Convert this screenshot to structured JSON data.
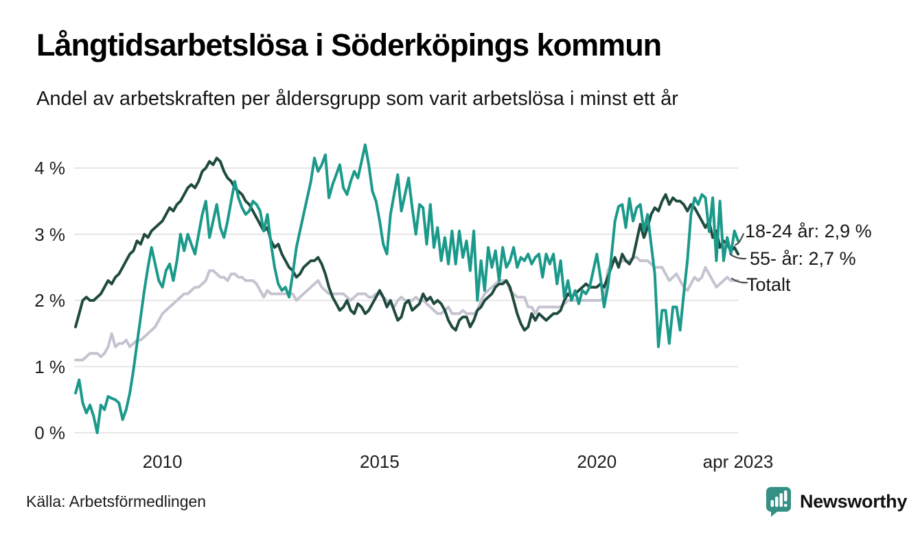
{
  "header": {
    "title": "Långtidsarbetslösa i Söderköpings kommun",
    "subtitle": "Andel av arbetskraften per åldersgrupp som varit arbetslösa i minst ett år"
  },
  "chart_data": {
    "type": "line",
    "x_unit": "month",
    "x_start": "2008-01",
    "x_end": "2023-04",
    "ylim": [
      0,
      4.5
    ],
    "grid": "horizontal",
    "legend_position": "right-end-labels",
    "yticks": [
      {
        "value": 0,
        "label": "0 %"
      },
      {
        "value": 1,
        "label": "1 %"
      },
      {
        "value": 2,
        "label": "2 %"
      },
      {
        "value": 3,
        "label": "3 %"
      },
      {
        "value": 4,
        "label": "4 %"
      }
    ],
    "xticks": [
      {
        "month_index": 24,
        "label": "2010"
      },
      {
        "month_index": 84,
        "label": "2015"
      },
      {
        "month_index": 144,
        "label": "2020"
      },
      {
        "month_index": 183,
        "label": "apr 2023"
      }
    ],
    "series": [
      {
        "name": "Totalt",
        "color": "#c5c3d0",
        "end_label": "Totalt",
        "end_value": 2.3,
        "values": [
          1.1,
          1.1,
          1.1,
          1.15,
          1.2,
          1.2,
          1.2,
          1.15,
          1.2,
          1.3,
          1.5,
          1.3,
          1.35,
          1.35,
          1.4,
          1.3,
          1.35,
          1.4,
          1.4,
          1.45,
          1.5,
          1.55,
          1.6,
          1.7,
          1.8,
          1.85,
          1.9,
          1.95,
          2.0,
          2.05,
          2.1,
          2.1,
          2.15,
          2.2,
          2.2,
          2.25,
          2.3,
          2.45,
          2.45,
          2.4,
          2.35,
          2.35,
          2.3,
          2.4,
          2.4,
          2.35,
          2.35,
          2.3,
          2.3,
          2.3,
          2.25,
          2.15,
          2.05,
          2.15,
          2.1,
          2.1,
          2.1,
          2.1,
          2.1,
          2.1,
          2.1,
          2.0,
          2.05,
          2.1,
          2.15,
          2.2,
          2.25,
          2.3,
          2.2,
          2.15,
          2.1,
          2.1,
          2.1,
          2.1,
          2.1,
          2.05,
          2.0,
          2.05,
          2.1,
          2.1,
          2.1,
          2.05,
          2.05,
          2.1,
          2.1,
          2.05,
          2.0,
          1.95,
          1.9,
          2.0,
          2.05,
          2.0,
          2.0,
          2.0,
          2.05,
          2.0,
          2.0,
          1.95,
          1.9,
          1.85,
          1.8,
          1.8,
          1.85,
          1.9,
          1.8,
          1.8,
          1.8,
          1.85,
          1.8,
          1.8,
          1.8,
          1.85,
          2.0,
          2.1,
          2.15,
          2.2,
          2.25,
          2.3,
          2.3,
          2.3,
          2.15,
          2.1,
          2.05,
          2.05,
          2.05,
          1.9,
          1.9,
          1.8,
          1.9,
          1.9,
          1.9,
          1.9,
          1.9,
          1.9,
          1.9,
          1.95,
          2.0,
          2.0,
          2.0,
          2.0,
          2.0,
          2.0,
          2.0,
          2.0,
          2.0,
          2.0,
          2.05,
          2.45,
          2.55,
          2.6,
          2.55,
          2.6,
          2.6,
          2.6,
          2.65,
          2.65,
          2.6,
          2.6,
          2.6,
          2.55,
          2.5,
          2.5,
          2.5,
          2.4,
          2.3,
          2.35,
          2.4,
          2.3,
          2.2,
          2.15,
          2.25,
          2.35,
          2.3,
          2.35,
          2.5,
          2.4,
          2.3,
          2.2,
          2.25,
          2.3,
          2.35,
          2.3,
          2.3,
          2.3
        ]
      },
      {
        "name": "55- år",
        "color": "#1f4a3d",
        "end_label": "55- år: 2,7 %",
        "end_value": 2.7,
        "values": [
          1.6,
          1.8,
          2.0,
          2.05,
          2.0,
          2.0,
          2.05,
          2.1,
          2.2,
          2.3,
          2.25,
          2.35,
          2.4,
          2.5,
          2.6,
          2.7,
          2.75,
          2.9,
          2.85,
          3.0,
          2.95,
          3.05,
          3.1,
          3.15,
          3.2,
          3.3,
          3.4,
          3.35,
          3.45,
          3.5,
          3.6,
          3.7,
          3.75,
          3.7,
          3.8,
          3.95,
          4.0,
          4.1,
          4.05,
          4.15,
          4.1,
          3.95,
          3.85,
          3.8,
          3.7,
          3.65,
          3.6,
          3.5,
          3.45,
          3.35,
          3.25,
          3.15,
          3.05,
          3.1,
          2.9,
          2.8,
          2.85,
          2.7,
          2.6,
          2.5,
          2.45,
          2.35,
          2.4,
          2.5,
          2.55,
          2.6,
          2.6,
          2.65,
          2.55,
          2.4,
          2.2,
          2.05,
          1.95,
          1.85,
          1.9,
          2.0,
          1.85,
          1.8,
          1.95,
          1.9,
          1.8,
          1.85,
          1.95,
          2.05,
          2.15,
          2.05,
          1.9,
          2.0,
          1.85,
          1.7,
          1.75,
          1.95,
          2.0,
          1.85,
          1.9,
          1.95,
          2.1,
          2.0,
          2.05,
          1.95,
          2.0,
          1.95,
          1.85,
          1.7,
          1.6,
          1.55,
          1.7,
          1.75,
          1.75,
          1.6,
          1.7,
          1.85,
          1.9,
          2.0,
          2.05,
          2.1,
          2.2,
          2.25,
          2.25,
          2.3,
          2.2,
          2.0,
          1.8,
          1.65,
          1.55,
          1.6,
          1.8,
          1.7,
          1.8,
          1.75,
          1.7,
          1.75,
          1.8,
          1.8,
          1.85,
          2.0,
          2.1,
          2.05,
          2.1,
          2.15,
          2.2,
          2.25,
          2.2,
          2.2,
          2.2,
          2.25,
          2.2,
          2.35,
          2.5,
          2.65,
          2.5,
          2.7,
          2.6,
          2.55,
          2.65,
          2.9,
          3.15,
          2.95,
          3.1,
          3.3,
          3.4,
          3.35,
          3.5,
          3.6,
          3.45,
          3.55,
          3.5,
          3.5,
          3.45,
          3.35,
          3.45,
          3.4,
          3.3,
          3.2,
          3.1,
          3.2,
          2.95,
          3.05,
          2.8,
          2.9,
          2.85,
          2.75,
          2.8,
          2.7
        ]
      },
      {
        "name": "18-24 år",
        "color": "#1b998b",
        "end_label": "18-24 år: 2,9 %",
        "end_value": 2.9,
        "values": [
          0.6,
          0.8,
          0.45,
          0.3,
          0.42,
          0.25,
          0.0,
          0.42,
          0.35,
          0.55,
          0.52,
          0.5,
          0.45,
          0.2,
          0.35,
          0.6,
          0.95,
          1.35,
          1.75,
          2.15,
          2.5,
          2.8,
          2.55,
          2.3,
          2.2,
          2.45,
          2.55,
          2.3,
          2.6,
          3.0,
          2.75,
          3.0,
          2.85,
          2.7,
          3.0,
          3.3,
          3.5,
          2.95,
          3.2,
          3.45,
          3.1,
          2.95,
          3.2,
          3.5,
          3.8,
          3.55,
          3.4,
          3.3,
          3.35,
          3.5,
          3.45,
          3.35,
          3.05,
          3.3,
          2.85,
          2.5,
          2.25,
          2.15,
          2.2,
          2.05,
          2.4,
          2.8,
          3.05,
          3.3,
          3.55,
          3.8,
          4.15,
          3.95,
          4.05,
          4.2,
          3.55,
          3.75,
          3.9,
          4.05,
          3.7,
          3.6,
          3.8,
          3.95,
          3.85,
          4.1,
          4.35,
          4.05,
          3.65,
          3.5,
          3.2,
          2.85,
          2.7,
          3.3,
          3.6,
          3.9,
          3.35,
          3.6,
          3.85,
          3.4,
          3.0,
          3.45,
          3.4,
          2.85,
          3.45,
          2.8,
          3.1,
          2.6,
          2.95,
          2.55,
          3.05,
          2.55,
          3.05,
          2.65,
          2.9,
          2.45,
          3.05,
          2.0,
          2.6,
          2.15,
          2.8,
          2.5,
          2.75,
          2.3,
          2.8,
          2.5,
          2.6,
          2.8,
          2.5,
          2.65,
          2.6,
          2.7,
          2.55,
          2.65,
          2.7,
          2.35,
          2.7,
          2.55,
          2.7,
          2.25,
          2.6,
          2.05,
          2.3,
          2.0,
          2.15,
          1.95,
          2.15,
          2.1,
          2.2,
          2.45,
          2.7,
          2.35,
          1.9,
          2.2,
          2.65,
          3.2,
          3.42,
          3.45,
          3.1,
          3.54,
          3.2,
          3.4,
          3.45,
          3.05,
          3.3,
          2.85,
          2.4,
          1.3,
          1.85,
          1.85,
          1.35,
          1.9,
          1.9,
          1.55,
          2.1,
          2.6,
          3.3,
          3.55,
          3.45,
          3.6,
          3.55,
          3.04,
          3.55,
          2.6,
          3.5,
          2.6,
          2.95,
          2.7,
          3.05,
          2.9
        ]
      }
    ]
  },
  "footer": {
    "source": "Källa: Arbetsförmedlingen",
    "brand": "Newsworthy",
    "brand_color": "#2f9284"
  },
  "colors": {
    "series_18_24": "#1b998b",
    "series_55": "#1f4a3d",
    "series_total": "#c5c3d0",
    "gridline": "#e2e2e2",
    "text": "#161616"
  }
}
